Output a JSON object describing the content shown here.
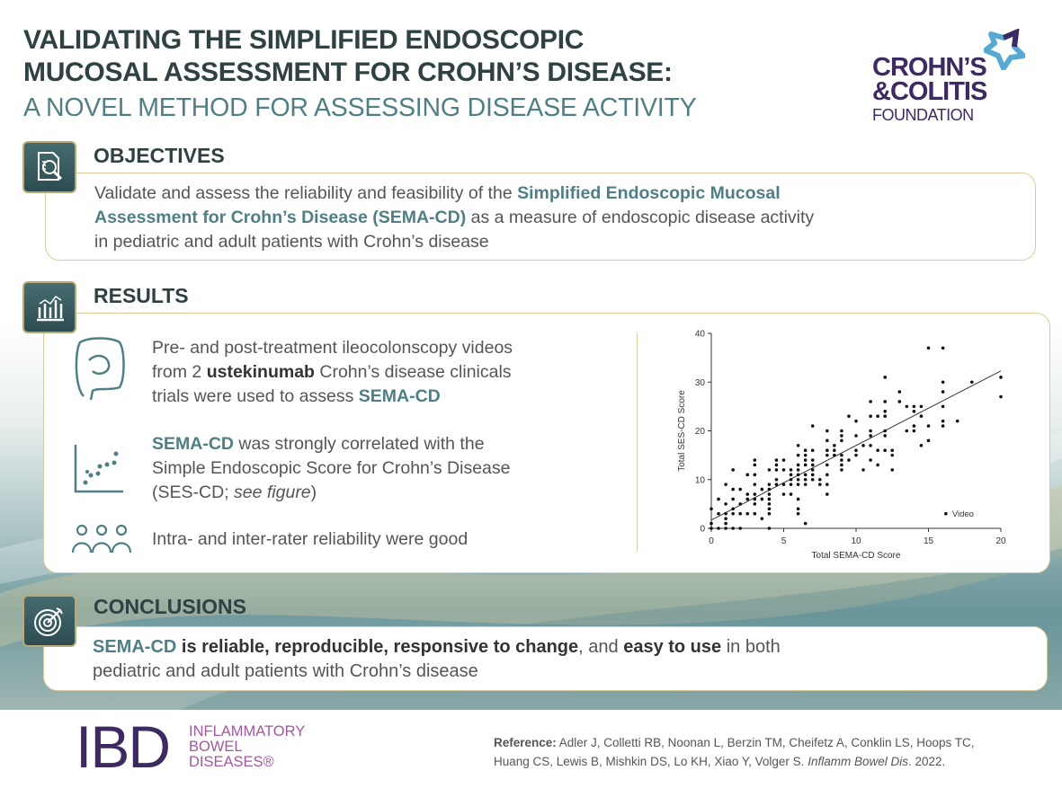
{
  "title": {
    "line1": "VALIDATING THE SIMPLIFIED ENDOSCOPIC",
    "line2": "MUCOSAL ASSESSMENT FOR CROHN’S DISEASE:",
    "subtitle": "A NOVEL METHOD FOR ASSESSING DISEASE ACTIVITY"
  },
  "logo_ccf": {
    "line1": "CROHN’S",
    "line2": "&COLITIS",
    "line3": "FOUNDATION"
  },
  "objectives": {
    "heading": "OBJECTIVES",
    "p1": "Validate and assess the reliability and feasibility of the ",
    "p2": "Simplified Endoscopic Mucosal",
    "p3": "Assessment for Crohn’s Disease (SEMA-CD)",
    "p4": " as a measure of endoscopic disease activity",
    "p5": "in pediatric and adult patients with Crohn’s disease"
  },
  "results": {
    "heading": "RESULTS",
    "item1": {
      "a": "Pre- and post-treatment ileocolonscopy videos",
      "b": "from 2 ",
      "c": "ustekinumab",
      "d": " Crohn’s disease clinicals",
      "e": "trials were used to assess ",
      "f": "SEMA-CD"
    },
    "item2": {
      "a": "SEMA-CD",
      "b": " was strongly correlated with the",
      "c": "Simple Endoscopic Score for Crohn’s Disease",
      "d": "(SES-CD; ",
      "e": "see figure",
      "f": ")"
    },
    "item3": {
      "a": "Intra- and inter-rater reliability were good"
    }
  },
  "conclusions": {
    "heading": "CONCLUSIONS",
    "a": "SEMA-CD",
    "b": " is reliable, reproducible, responsive to change",
    "c": ", and ",
    "d": "easy to use",
    "e": " in both",
    "f": "pediatric and adult patients with Crohn’s disease"
  },
  "footer": {
    "ibd": "IBD",
    "ibd_l1": "INFLAMMATORY",
    "ibd_l2": "BOWEL",
    "ibd_l3": "DISEASES®",
    "ref_label": "Reference:",
    "ref1": " Adler J, Colletti RB, Noonan L, Berzin TM, Cheifetz A, Conklin LS, Hoops TC,",
    "ref2": "Huang CS, Lewis B, Mishkin DS, Lo KH, Xiao Y, Volger S. ",
    "ref_journal": "Inflamm Bowel Dis",
    "ref_year": ". 2022."
  },
  "colors": {
    "teal": "#4f7f84",
    "dark": "#2f4143",
    "purple": "#3d2a63",
    "magenta": "#a05a9c",
    "gold": "#d9cb9e"
  },
  "chart_data": {
    "type": "scatter",
    "xlabel": "Total SEMA-CD Score",
    "ylabel": "Total SES-CD Score",
    "xlim": [
      0,
      20
    ],
    "ylim": [
      0,
      40
    ],
    "xticks": [
      "0",
      "5",
      "10",
      "15",
      "20"
    ],
    "yticks": [
      "0",
      "10",
      "20",
      "30",
      "40"
    ],
    "legend": "Video",
    "legend_position": "bottom-right",
    "grid": false,
    "fit_line": [
      [
        0,
        1.7
      ],
      [
        20,
        32.3
      ]
    ],
    "points": [
      [
        0,
        0
      ],
      [
        0,
        1
      ],
      [
        0,
        4
      ],
      [
        0.5,
        0
      ],
      [
        0.5,
        3
      ],
      [
        0.5,
        6
      ],
      [
        1,
        0
      ],
      [
        1,
        1
      ],
      [
        1,
        2
      ],
      [
        1,
        3
      ],
      [
        1,
        5
      ],
      [
        1,
        9
      ],
      [
        1.5,
        0
      ],
      [
        1.5,
        3
      ],
      [
        1.5,
        4
      ],
      [
        1.5,
        6
      ],
      [
        1.5,
        8
      ],
      [
        1.5,
        12
      ],
      [
        2,
        0
      ],
      [
        2,
        3
      ],
      [
        2,
        5
      ],
      [
        2,
        8
      ],
      [
        2.5,
        3
      ],
      [
        2.5,
        6
      ],
      [
        2.5,
        7
      ],
      [
        2.5,
        11
      ],
      [
        3,
        3
      ],
      [
        3,
        5
      ],
      [
        3,
        6
      ],
      [
        3,
        7
      ],
      [
        3,
        9
      ],
      [
        3,
        11
      ],
      [
        3,
        13
      ],
      [
        3,
        14
      ],
      [
        3.5,
        2
      ],
      [
        3.5,
        6
      ],
      [
        3.5,
        8
      ],
      [
        4,
        0
      ],
      [
        4,
        3
      ],
      [
        4,
        4
      ],
      [
        4,
        5
      ],
      [
        4,
        6
      ],
      [
        4,
        7
      ],
      [
        4,
        8
      ],
      [
        4,
        9
      ],
      [
        4,
        12
      ],
      [
        4.5,
        9
      ],
      [
        4.5,
        10
      ],
      [
        4.5,
        12
      ],
      [
        4.5,
        13
      ],
      [
        4.5,
        14
      ],
      [
        5,
        7
      ],
      [
        5,
        9
      ],
      [
        5,
        12
      ],
      [
        5,
        14
      ],
      [
        5.5,
        7
      ],
      [
        5.5,
        9
      ],
      [
        5.5,
        10
      ],
      [
        5.5,
        11
      ],
      [
        5.5,
        12
      ],
      [
        6,
        3
      ],
      [
        6,
        4
      ],
      [
        6,
        6
      ],
      [
        6,
        9
      ],
      [
        6,
        10
      ],
      [
        6,
        11
      ],
      [
        6,
        12
      ],
      [
        6,
        13
      ],
      [
        6,
        15
      ],
      [
        6,
        17
      ],
      [
        6.5,
        1
      ],
      [
        6.5,
        9
      ],
      [
        6.5,
        10
      ],
      [
        6.5,
        11
      ],
      [
        6.5,
        13
      ],
      [
        6.5,
        14
      ],
      [
        6.5,
        15
      ],
      [
        6.5,
        16
      ],
      [
        7,
        10
      ],
      [
        7,
        11
      ],
      [
        7,
        12
      ],
      [
        7,
        13
      ],
      [
        7,
        14
      ],
      [
        7,
        16
      ],
      [
        7,
        21
      ],
      [
        7.5,
        9
      ],
      [
        7.5,
        10
      ],
      [
        8,
        7
      ],
      [
        8,
        9
      ],
      [
        8,
        11
      ],
      [
        8,
        13
      ],
      [
        8,
        15
      ],
      [
        8,
        16
      ],
      [
        8,
        18
      ],
      [
        8,
        20
      ],
      [
        8.5,
        15
      ],
      [
        8.5,
        16
      ],
      [
        8.5,
        17
      ],
      [
        9,
        12
      ],
      [
        9,
        13
      ],
      [
        9,
        14
      ],
      [
        9,
        15
      ],
      [
        9,
        18
      ],
      [
        9,
        19
      ],
      [
        9,
        20
      ],
      [
        9.5,
        14
      ],
      [
        9.5,
        23
      ],
      [
        10,
        15
      ],
      [
        10,
        16
      ],
      [
        10,
        19
      ],
      [
        10,
        22
      ],
      [
        10.5,
        12
      ],
      [
        10.5,
        17
      ],
      [
        11,
        14
      ],
      [
        11,
        17
      ],
      [
        11,
        19
      ],
      [
        11,
        20
      ],
      [
        11,
        23
      ],
      [
        11,
        26
      ],
      [
        11.5,
        13
      ],
      [
        11.5,
        16
      ],
      [
        11.5,
        23
      ],
      [
        12,
        16
      ],
      [
        12,
        19
      ],
      [
        12,
        20
      ],
      [
        12,
        23
      ],
      [
        12,
        24
      ],
      [
        12,
        26
      ],
      [
        12,
        31
      ],
      [
        12.5,
        12
      ],
      [
        12.5,
        15
      ],
      [
        12.5,
        16
      ],
      [
        13,
        26
      ],
      [
        13,
        28
      ],
      [
        13.5,
        20
      ],
      [
        13.5,
        25
      ],
      [
        14,
        20
      ],
      [
        14,
        21
      ],
      [
        14,
        24
      ],
      [
        14,
        25
      ],
      [
        14.5,
        17
      ],
      [
        14.5,
        23
      ],
      [
        14.5,
        25
      ],
      [
        15,
        18
      ],
      [
        15,
        21
      ],
      [
        15,
        37
      ],
      [
        16,
        21
      ],
      [
        16,
        22
      ],
      [
        16,
        25
      ],
      [
        16,
        28
      ],
      [
        16,
        30
      ],
      [
        16,
        37
      ],
      [
        17,
        22
      ],
      [
        18,
        30
      ],
      [
        20,
        27
      ],
      [
        20,
        31
      ]
    ]
  }
}
